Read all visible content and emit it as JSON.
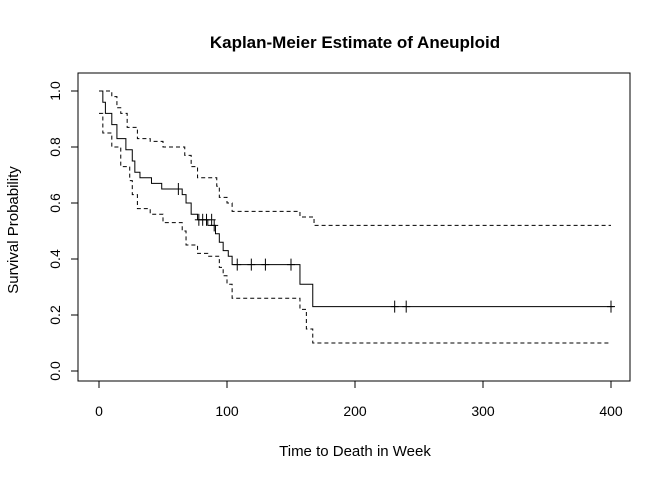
{
  "chart_data": {
    "type": "line",
    "title": "Kaplan-Meier Estimate of Aneuploid",
    "xlabel": "Time to Death in Week",
    "ylabel": "Survival Probability",
    "xlim": [
      0,
      410
    ],
    "ylim": [
      0,
      1.0
    ],
    "xticks": [
      0,
      100,
      200,
      300,
      400
    ],
    "xtick_labels": [
      "0",
      "100",
      "200",
      "300",
      "400"
    ],
    "yticks": [
      0.0,
      0.2,
      0.4,
      0.6,
      0.8,
      1.0
    ],
    "ytick_labels": [
      "0.0",
      "0.2",
      "0.4",
      "0.6",
      "0.8",
      "1.0"
    ],
    "grid": false,
    "legend": "none",
    "series": [
      {
        "role": "estimate",
        "style": "solid",
        "steps": [
          [
            0,
            1.0
          ],
          [
            3,
            0.96
          ],
          [
            5,
            0.92
          ],
          [
            10,
            0.88
          ],
          [
            14,
            0.83
          ],
          [
            21,
            0.79
          ],
          [
            26,
            0.75
          ],
          [
            28,
            0.71
          ],
          [
            32,
            0.69
          ],
          [
            41,
            0.67
          ],
          [
            49,
            0.65
          ],
          [
            65,
            0.63
          ],
          [
            68,
            0.6
          ],
          [
            72,
            0.56
          ],
          [
            77,
            0.54
          ],
          [
            85,
            0.52
          ],
          [
            91,
            0.49
          ],
          [
            94,
            0.46
          ],
          [
            97,
            0.43
          ],
          [
            101,
            0.41
          ],
          [
            104,
            0.38
          ],
          [
            157,
            0.31
          ],
          [
            167,
            0.23
          ],
          [
            402,
            0.23
          ]
        ]
      },
      {
        "role": "upper",
        "style": "dashed",
        "steps": [
          [
            0,
            1.0
          ],
          [
            10,
            0.98
          ],
          [
            14,
            0.94
          ],
          [
            17,
            0.92
          ],
          [
            22,
            0.87
          ],
          [
            30,
            0.83
          ],
          [
            40,
            0.82
          ],
          [
            50,
            0.8
          ],
          [
            67,
            0.77
          ],
          [
            72,
            0.73
          ],
          [
            77,
            0.69
          ],
          [
            92,
            0.66
          ],
          [
            94,
            0.62
          ],
          [
            100,
            0.6
          ],
          [
            104,
            0.57
          ],
          [
            157,
            0.55
          ],
          [
            168,
            0.52
          ],
          [
            400,
            0.52
          ]
        ]
      },
      {
        "role": "lower",
        "style": "dashed",
        "steps": [
          [
            0,
            0.92
          ],
          [
            3,
            0.85
          ],
          [
            10,
            0.8
          ],
          [
            17,
            0.73
          ],
          [
            24,
            0.68
          ],
          [
            26,
            0.63
          ],
          [
            30,
            0.58
          ],
          [
            40,
            0.56
          ],
          [
            50,
            0.53
          ],
          [
            65,
            0.5
          ],
          [
            68,
            0.45
          ],
          [
            77,
            0.42
          ],
          [
            85,
            0.41
          ],
          [
            94,
            0.37
          ],
          [
            97,
            0.34
          ],
          [
            100,
            0.31
          ],
          [
            104,
            0.26
          ],
          [
            157,
            0.22
          ],
          [
            162,
            0.15
          ],
          [
            167,
            0.1
          ],
          [
            400,
            0.1
          ]
        ]
      }
    ],
    "censored": [
      [
        62,
        0.65
      ],
      [
        78,
        0.54
      ],
      [
        81,
        0.54
      ],
      [
        84,
        0.54
      ],
      [
        88,
        0.54
      ],
      [
        90,
        0.52
      ],
      [
        108,
        0.38
      ],
      [
        119,
        0.38
      ],
      [
        130,
        0.38
      ],
      [
        150,
        0.38
      ],
      [
        231,
        0.23
      ],
      [
        240,
        0.23
      ],
      [
        400,
        0.23
      ]
    ]
  }
}
